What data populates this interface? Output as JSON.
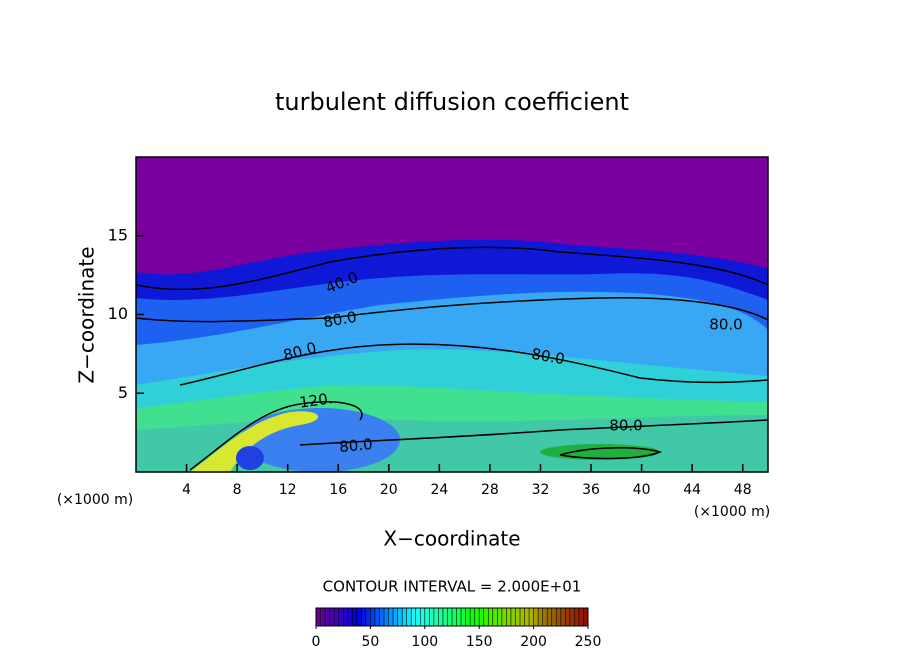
{
  "chart_data": {
    "type": "contour",
    "title": "turbulent diffusion coefficient",
    "x_label": "X−coordinate",
    "y_label": "Z−coordinate",
    "axis_units": [
      "(×1000 m)",
      "(×1000 m)"
    ],
    "xlim": [
      0,
      50
    ],
    "xticks": [
      4,
      8,
      12,
      16,
      20,
      24,
      28,
      32,
      36,
      40,
      44,
      48
    ],
    "ylim": [
      0,
      20
    ],
    "yticks": [
      5,
      10,
      15
    ],
    "contour_labels": {
      "values": [
        40,
        80,
        80,
        80,
        80,
        120,
        80,
        80
      ],
      "value_labels": [
        "40.0",
        "80.0",
        "80.0",
        "80.0",
        "80.0",
        "120.",
        "80.0",
        "80.0"
      ]
    },
    "contour_interval_text": "CONTOUR INTERVAL = 2.000E+01",
    "colorbar": {
      "lim": [
        0,
        250
      ],
      "ticks": [
        0,
        50,
        100,
        150,
        200,
        250
      ]
    }
  }
}
